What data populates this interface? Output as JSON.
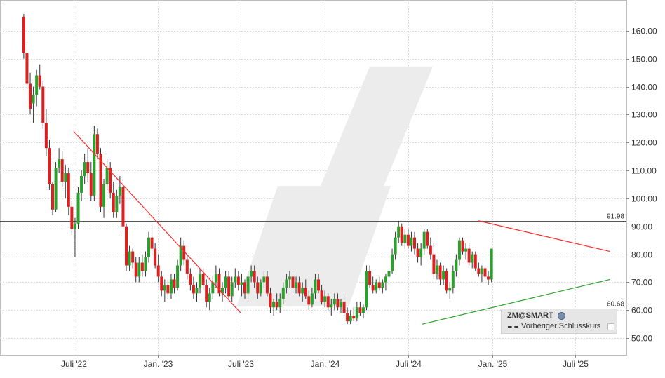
{
  "chart_data": {
    "type": "candlestick",
    "symbol": "ZM@SMART",
    "legend_entry": "Vorheriger Schlusskurs",
    "x_tick_labels": [
      "Juli '22",
      "Jan. '23",
      "Juli '23",
      "Jan. '24",
      "Juli '24",
      "Jan. '25",
      "Juli '25"
    ],
    "y_tick_labels": [
      "50.00",
      "60.00",
      "70.00",
      "80.00",
      "90.00",
      "100.00",
      "110.00",
      "120.00",
      "130.00",
      "140.00",
      "150.00",
      "160.00"
    ],
    "ylim": [
      44,
      171
    ],
    "y_ticks": [
      50,
      60,
      70,
      80,
      90,
      100,
      110,
      120,
      130,
      140,
      150,
      160
    ],
    "horizontal_levels": [
      {
        "label": "91.98",
        "value": 91.98
      },
      {
        "label": "60.68",
        "value": 60.68
      }
    ],
    "trendlines": [
      {
        "color": "#ff2a2a",
        "from": [
          "2022-07-01",
          124
        ],
        "to": [
          "2023-07-01",
          59
        ]
      },
      {
        "color": "#ff2a2a",
        "from": [
          "2024-12-01",
          92
        ],
        "to": [
          "2025-09-15",
          81
        ]
      },
      {
        "color": "#2ca02c",
        "from": [
          "2024-08-01",
          55
        ],
        "to": [
          "2025-09-15",
          71
        ]
      }
    ],
    "up_color": "#2ca02c",
    "down_color": "#dd1f1f",
    "start_date": "2022-03-14",
    "candle_interval_days": 7,
    "candles": [
      [
        165,
        166,
        150,
        152
      ],
      [
        152,
        156,
        140,
        141
      ],
      [
        141,
        145,
        130,
        132
      ],
      [
        134,
        140,
        127,
        137
      ],
      [
        137,
        146,
        133,
        144
      ],
      [
        144,
        148,
        139,
        140
      ],
      [
        140,
        142,
        125,
        127
      ],
      [
        127,
        132,
        115,
        118
      ],
      [
        118,
        121,
        103,
        105
      ],
      [
        105,
        106,
        94,
        96
      ],
      [
        96,
        113,
        95,
        111
      ],
      [
        111,
        118,
        109,
        114
      ],
      [
        114,
        117,
        104,
        106
      ],
      [
        106,
        112,
        100,
        109
      ],
      [
        109,
        111,
        94,
        97
      ],
      [
        97,
        99,
        87,
        89
      ],
      [
        89,
        93,
        79,
        91
      ],
      [
        91,
        104,
        89,
        102
      ],
      [
        102,
        110,
        99,
        108
      ],
      [
        108,
        116,
        105,
        113
      ],
      [
        113,
        118,
        106,
        109
      ],
      [
        109,
        113,
        99,
        101
      ],
      [
        101,
        126,
        99,
        123
      ],
      [
        123,
        125,
        114,
        116
      ],
      [
        116,
        118,
        95,
        97
      ],
      [
        97,
        107,
        93,
        105
      ],
      [
        105,
        114,
        103,
        111
      ],
      [
        111,
        113,
        100,
        102
      ],
      [
        102,
        106,
        93,
        95
      ],
      [
        95,
        103,
        93,
        101
      ],
      [
        101,
        108,
        98,
        104
      ],
      [
        104,
        106,
        88,
        90
      ],
      [
        90,
        91,
        74,
        76
      ],
      [
        76,
        83,
        74,
        81
      ],
      [
        81,
        82,
        75,
        77
      ],
      [
        77,
        79,
        70,
        72
      ],
      [
        72,
        79,
        70,
        77
      ],
      [
        77,
        80,
        72,
        74
      ],
      [
        74,
        81,
        72,
        79
      ],
      [
        79,
        88,
        77,
        86
      ],
      [
        86,
        91,
        80,
        82
      ],
      [
        82,
        84,
        75,
        76
      ],
      [
        76,
        80,
        70,
        72
      ],
      [
        72,
        74,
        65,
        67
      ],
      [
        67,
        71,
        63,
        69
      ],
      [
        69,
        71,
        64,
        66
      ],
      [
        66,
        73,
        64,
        71
      ],
      [
        71,
        73,
        66,
        68
      ],
      [
        68,
        78,
        67,
        76
      ],
      [
        76,
        86,
        74,
        83
      ],
      [
        83,
        85,
        76,
        78
      ],
      [
        78,
        80,
        71,
        73
      ],
      [
        73,
        75,
        67,
        69
      ],
      [
        69,
        72,
        64,
        66
      ],
      [
        66,
        70,
        63,
        68
      ],
      [
        68,
        75,
        66,
        73
      ],
      [
        73,
        75,
        67,
        69
      ],
      [
        69,
        71,
        61,
        63
      ],
      [
        63,
        68,
        60,
        66
      ],
      [
        66,
        72,
        64,
        70
      ],
      [
        70,
        76,
        68,
        73
      ],
      [
        73,
        75,
        65,
        66
      ],
      [
        66,
        70,
        63,
        68
      ],
      [
        68,
        74,
        66,
        72
      ],
      [
        72,
        74,
        64,
        65
      ],
      [
        65,
        72,
        63,
        70
      ],
      [
        70,
        75,
        68,
        72
      ],
      [
        72,
        74,
        67,
        69
      ],
      [
        69,
        73,
        65,
        70
      ],
      [
        70,
        71,
        64,
        66
      ],
      [
        66,
        74,
        64,
        72
      ],
      [
        72,
        76,
        70,
        74
      ],
      [
        74,
        76,
        68,
        70
      ],
      [
        70,
        72,
        64,
        66
      ],
      [
        66,
        71,
        65,
        70
      ],
      [
        70,
        74,
        68,
        72
      ],
      [
        72,
        74,
        65,
        66
      ],
      [
        66,
        68,
        59,
        61
      ],
      [
        61,
        64,
        58,
        63
      ],
      [
        63,
        66,
        60,
        61
      ],
      [
        61,
        66,
        59,
        64
      ],
      [
        64,
        70,
        62,
        68
      ],
      [
        68,
        73,
        66,
        71
      ],
      [
        71,
        74,
        68,
        72
      ],
      [
        72,
        74,
        66,
        68
      ],
      [
        68,
        72,
        66,
        70
      ],
      [
        70,
        72,
        65,
        66
      ],
      [
        66,
        70,
        63,
        68
      ],
      [
        68,
        71,
        64,
        65
      ],
      [
        65,
        67,
        60,
        62
      ],
      [
        62,
        68,
        61,
        66
      ],
      [
        66,
        73,
        64,
        71
      ],
      [
        71,
        73,
        66,
        67
      ],
      [
        67,
        69,
        62,
        63
      ],
      [
        63,
        67,
        61,
        65
      ],
      [
        65,
        66,
        60,
        61
      ],
      [
        61,
        64,
        58,
        62
      ],
      [
        62,
        66,
        60,
        64
      ],
      [
        64,
        66,
        60,
        61
      ],
      [
        61,
        64,
        59,
        63
      ],
      [
        63,
        65,
        58,
        59
      ],
      [
        59,
        61,
        55,
        56
      ],
      [
        56,
        60,
        55,
        58
      ],
      [
        58,
        61,
        56,
        57
      ],
      [
        57,
        63,
        56,
        61
      ],
      [
        61,
        63,
        58,
        59
      ],
      [
        59,
        62,
        57,
        61
      ],
      [
        61,
        76,
        60,
        74
      ],
      [
        74,
        76,
        68,
        69
      ],
      [
        69,
        72,
        66,
        67
      ],
      [
        67,
        71,
        66,
        70
      ],
      [
        70,
        72,
        67,
        68
      ],
      [
        68,
        71,
        66,
        70
      ],
      [
        70,
        73,
        67,
        72
      ],
      [
        72,
        76,
        70,
        74
      ],
      [
        74,
        82,
        73,
        80
      ],
      [
        80,
        88,
        78,
        86
      ],
      [
        86,
        92,
        84,
        90
      ],
      [
        90,
        91,
        83,
        84
      ],
      [
        84,
        89,
        82,
        87
      ],
      [
        87,
        89,
        82,
        83
      ],
      [
        83,
        88,
        81,
        86
      ],
      [
        86,
        88,
        80,
        82
      ],
      [
        82,
        84,
        77,
        79
      ],
      [
        79,
        84,
        76,
        82
      ],
      [
        82,
        89,
        80,
        88
      ],
      [
        88,
        89,
        82,
        83
      ],
      [
        83,
        86,
        78,
        80
      ],
      [
        80,
        84,
        71,
        73
      ],
      [
        73,
        78,
        71,
        76
      ],
      [
        76,
        77,
        69,
        71
      ],
      [
        71,
        76,
        69,
        74
      ],
      [
        74,
        75,
        66,
        67
      ],
      [
        67,
        70,
        64,
        68
      ],
      [
        68,
        76,
        66,
        74
      ],
      [
        74,
        80,
        72,
        78
      ],
      [
        78,
        86,
        76,
        85
      ],
      [
        85,
        86,
        80,
        81
      ],
      [
        81,
        84,
        78,
        82
      ],
      [
        82,
        84,
        76,
        77
      ],
      [
        77,
        81,
        75,
        80
      ],
      [
        80,
        81,
        74,
        75
      ],
      [
        75,
        77,
        72,
        73
      ],
      [
        73,
        76,
        70,
        75
      ],
      [
        75,
        76,
        71,
        72
      ],
      [
        72,
        74,
        69,
        71
      ],
      [
        71,
        82,
        70,
        82
      ]
    ]
  }
}
